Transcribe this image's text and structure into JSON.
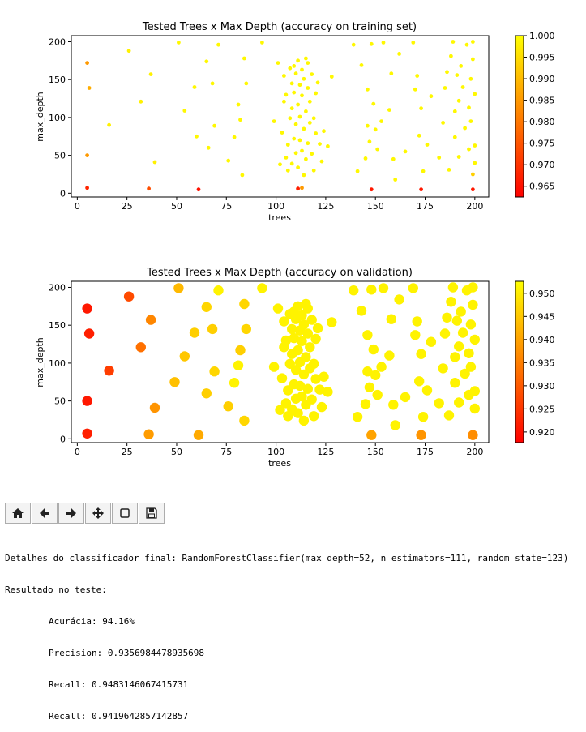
{
  "chart_data": [
    {
      "type": "scatter",
      "title": "Tested Trees x Max Depth (accuracy on training set)",
      "xlabel": "trees",
      "ylabel": "max_depth",
      "xlim": [
        -3,
        207
      ],
      "ylim": [
        -5,
        208
      ],
      "xticks": [
        "0",
        "25",
        "50",
        "75",
        "100",
        "125",
        "150",
        "175",
        "200"
      ],
      "yticks": [
        "0",
        "50",
        "100",
        "150",
        "200"
      ],
      "colormap": "autumn",
      "colorbar": {
        "vmin": 0.9625,
        "vmax": 1.0,
        "ticks": [
          "0.965",
          "0.970",
          "0.975",
          "0.980",
          "0.985",
          "0.990",
          "0.995",
          "1.000"
        ]
      },
      "legend": "none",
      "grid": false,
      "marker_size": "small",
      "colored_points": [
        {
          "x": 5,
          "y": 172,
          "value": 0.985
        },
        {
          "x": 6,
          "y": 139,
          "value": 0.988
        },
        {
          "x": 5,
          "y": 50,
          "value": 0.985
        },
        {
          "x": 5,
          "y": 7,
          "value": 0.968
        },
        {
          "x": 36,
          "y": 6,
          "value": 0.974
        },
        {
          "x": 61,
          "y": 5,
          "value": 0.965
        },
        {
          "x": 111,
          "y": 6,
          "value": 0.967
        },
        {
          "x": 113,
          "y": 7,
          "value": 0.985
        },
        {
          "x": 148,
          "y": 5,
          "value": 0.966
        },
        {
          "x": 173,
          "y": 5,
          "value": 0.966
        },
        {
          "x": 199,
          "y": 5,
          "value": 0.966
        },
        {
          "x": 199,
          "y": 25,
          "value": 0.993
        },
        {
          "x": 16,
          "y": 90,
          "value": 0.998
        },
        {
          "x": 26,
          "y": 188,
          "value": 0.998
        },
        {
          "x": 32,
          "y": 121,
          "value": 0.998
        },
        {
          "x": 37,
          "y": 157,
          "value": 0.998
        },
        {
          "x": 39,
          "y": 41,
          "value": 0.998
        }
      ],
      "high_value_points": {
        "value": 0.999,
        "x": [
          51,
          54,
          59,
          60,
          65,
          66,
          68,
          69,
          71,
          76,
          79,
          81,
          82,
          83,
          84,
          85,
          93,
          99,
          101,
          102,
          103,
          104,
          104,
          105,
          105,
          106,
          106,
          107,
          107,
          108,
          108,
          108,
          109,
          109,
          109,
          110,
          110,
          110,
          111,
          111,
          111,
          112,
          112,
          112,
          113,
          113,
          113,
          114,
          114,
          114,
          115,
          115,
          115,
          116,
          116,
          116,
          117,
          117,
          118,
          118,
          119,
          119,
          120,
          120,
          121,
          122,
          123,
          124,
          126,
          128,
          139,
          141,
          143,
          145,
          146,
          146,
          147,
          148,
          149,
          150,
          151,
          153,
          154,
          157,
          158,
          159,
          160,
          162,
          165,
          169,
          170,
          171,
          172,
          173,
          174,
          176,
          178,
          182,
          184,
          185,
          186,
          187,
          188,
          189,
          190,
          190,
          191,
          192,
          192,
          193,
          194,
          195,
          196,
          197,
          197,
          198,
          198,
          199,
          199,
          200,
          200,
          200
        ],
        "y": [
          199,
          109,
          140,
          75,
          174,
          60,
          145,
          89,
          196,
          43,
          74,
          117,
          97,
          24,
          178,
          145,
          199,
          95,
          172,
          38,
          80,
          121,
          155,
          47,
          130,
          30,
          64,
          165,
          99,
          39,
          145,
          112,
          168,
          72,
          133,
          53,
          158,
          91,
          175,
          34,
          117,
          143,
          70,
          101,
          163,
          56,
          129,
          24,
          85,
          151,
          178,
          45,
          108,
          139,
          66,
          172,
          93,
          121,
          52,
          157,
          30,
          99,
          132,
          79,
          146,
          65,
          42,
          82,
          62,
          154,
          196,
          29,
          169,
          46,
          137,
          89,
          68,
          197,
          118,
          84,
          58,
          95,
          199,
          110,
          158,
          45,
          18,
          184,
          55,
          199,
          137,
          155,
          76,
          112,
          29,
          64,
          128,
          47,
          93,
          139,
          160,
          31,
          181,
          200,
          108,
          74,
          156,
          122,
          48,
          168,
          140,
          86,
          196,
          113,
          58,
          151,
          95,
          177,
          200,
          131,
          63,
          40
        ]
      }
    },
    {
      "type": "scatter",
      "title": "Tested Trees x Max Depth (accuracy on validation)",
      "xlabel": "trees",
      "ylabel": "max_depth",
      "xlim": [
        -3,
        207
      ],
      "ylim": [
        -5,
        208
      ],
      "xticks": [
        "0",
        "25",
        "50",
        "75",
        "100",
        "125",
        "150",
        "175",
        "200"
      ],
      "yticks": [
        "0",
        "50",
        "100",
        "150",
        "200"
      ],
      "colormap": "autumn",
      "colorbar": {
        "vmin": 0.9177,
        "vmax": 0.9526,
        "ticks": [
          "0.920",
          "0.925",
          "0.930",
          "0.935",
          "0.940",
          "0.945",
          "0.950"
        ]
      },
      "legend": "none",
      "grid": false,
      "marker_size": "large",
      "colored_points": [
        {
          "x": 5,
          "y": 172,
          "value": 0.921
        },
        {
          "x": 6,
          "y": 139,
          "value": 0.922
        },
        {
          "x": 5,
          "y": 50,
          "value": 0.921
        },
        {
          "x": 5,
          "y": 7,
          "value": 0.922
        },
        {
          "x": 16,
          "y": 90,
          "value": 0.926
        },
        {
          "x": 26,
          "y": 188,
          "value": 0.928
        },
        {
          "x": 32,
          "y": 121,
          "value": 0.933
        },
        {
          "x": 37,
          "y": 157,
          "value": 0.936
        },
        {
          "x": 39,
          "y": 41,
          "value": 0.938
        },
        {
          "x": 36,
          "y": 6,
          "value": 0.939
        },
        {
          "x": 61,
          "y": 5,
          "value": 0.941
        },
        {
          "x": 148,
          "y": 5,
          "value": 0.94
        },
        {
          "x": 173,
          "y": 5,
          "value": 0.938
        },
        {
          "x": 199,
          "y": 5,
          "value": 0.937
        },
        {
          "x": 51,
          "y": 199,
          "value": 0.943
        },
        {
          "x": 49,
          "y": 75,
          "value": 0.944
        },
        {
          "x": 54,
          "y": 109,
          "value": 0.945
        },
        {
          "x": 59,
          "y": 140,
          "value": 0.946
        },
        {
          "x": 65,
          "y": 174,
          "value": 0.947
        },
        {
          "x": 65,
          "y": 60,
          "value": 0.946
        },
        {
          "x": 68,
          "y": 145,
          "value": 0.946
        },
        {
          "x": 69,
          "y": 89,
          "value": 0.947
        },
        {
          "x": 76,
          "y": 43,
          "value": 0.946
        },
        {
          "x": 82,
          "y": 117,
          "value": 0.946
        },
        {
          "x": 84,
          "y": 24,
          "value": 0.947
        },
        {
          "x": 84,
          "y": 178,
          "value": 0.947
        },
        {
          "x": 85,
          "y": 145,
          "value": 0.947
        }
      ],
      "high_value_points": {
        "value": 0.951,
        "x": [
          71,
          79,
          81,
          93,
          99,
          101,
          102,
          103,
          104,
          104,
          105,
          105,
          106,
          106,
          107,
          107,
          108,
          108,
          108,
          109,
          109,
          109,
          110,
          110,
          110,
          111,
          111,
          111,
          112,
          112,
          112,
          113,
          113,
          113,
          114,
          114,
          114,
          115,
          115,
          115,
          116,
          116,
          116,
          117,
          117,
          118,
          118,
          119,
          119,
          120,
          120,
          121,
          122,
          123,
          124,
          126,
          128,
          139,
          141,
          143,
          145,
          146,
          146,
          147,
          148,
          149,
          150,
          151,
          153,
          154,
          157,
          158,
          159,
          160,
          162,
          165,
          169,
          170,
          171,
          172,
          173,
          174,
          176,
          178,
          182,
          184,
          185,
          186,
          187,
          188,
          189,
          190,
          190,
          191,
          192,
          192,
          193,
          194,
          195,
          196,
          197,
          197,
          198,
          198,
          199,
          199,
          200,
          200,
          200
        ],
        "y": [
          196,
          74,
          97,
          199,
          95,
          172,
          38,
          80,
          121,
          155,
          47,
          130,
          30,
          64,
          165,
          99,
          39,
          145,
          112,
          168,
          72,
          133,
          53,
          158,
          91,
          175,
          34,
          117,
          143,
          70,
          101,
          163,
          56,
          129,
          24,
          85,
          151,
          178,
          45,
          108,
          139,
          66,
          172,
          93,
          121,
          52,
          157,
          30,
          99,
          132,
          79,
          146,
          65,
          42,
          82,
          62,
          154,
          196,
          29,
          169,
          46,
          137,
          89,
          68,
          197,
          118,
          84,
          58,
          95,
          199,
          110,
          158,
          45,
          18,
          184,
          55,
          199,
          137,
          155,
          76,
          112,
          29,
          64,
          128,
          47,
          93,
          139,
          160,
          31,
          181,
          200,
          108,
          74,
          156,
          122,
          48,
          168,
          140,
          86,
          196,
          113,
          58,
          151,
          95,
          177,
          200,
          131,
          63,
          40
        ]
      }
    }
  ],
  "toolbar": {
    "buttons": [
      {
        "name": "home-button",
        "icon": "home-icon"
      },
      {
        "name": "back-button",
        "icon": "arrow-left-icon"
      },
      {
        "name": "forward-button",
        "icon": "arrow-right-icon"
      },
      {
        "name": "pan-button",
        "icon": "move-icon"
      },
      {
        "name": "zoom-button",
        "icon": "rectangle-icon"
      },
      {
        "name": "save-button",
        "icon": "floppy-disk-icon"
      }
    ]
  },
  "console": {
    "line1": "Detalhes do classificador final: RandomForestClassifier(max_depth=52, n_estimators=111, random_state=123)",
    "line2": "Resultado no teste:",
    "line3": "Acurácia: 94.16%",
    "line4": "Precision: 0.9356984478935698",
    "line5": "Recall: 0.9483146067415731",
    "line6": "Recall: 0.9419642857142857"
  }
}
